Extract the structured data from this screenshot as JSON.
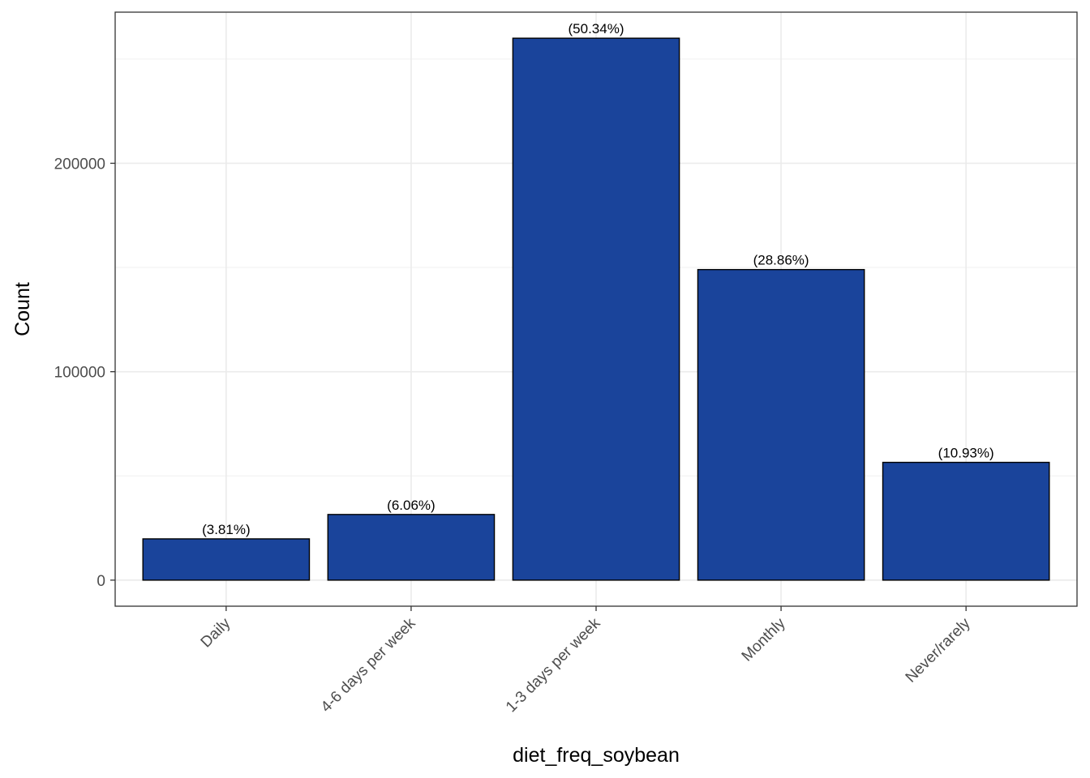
{
  "chart_data": {
    "type": "bar",
    "title": "",
    "xlabel": "diet_freq_soybean",
    "ylabel": "Count",
    "categories": [
      "Daily",
      "4-6 days per week",
      "1-3 days per week",
      "Monthly",
      "Never/rarely"
    ],
    "values": [
      19800,
      31500,
      260000,
      149000,
      56500
    ],
    "data_labels": [
      "(3.81%)",
      "(6.06%)",
      "(50.34%)",
      "(28.86%)",
      "(10.93%)"
    ],
    "ylim": [
      -12500,
      272500
    ],
    "yticks": [
      0,
      100000,
      200000
    ],
    "ytick_labels": [
      "0",
      "100000",
      "200000"
    ],
    "y_minor_ticks": [
      50000,
      150000,
      250000
    ],
    "grid": true,
    "legend": "none",
    "bar_color": "#1a449b",
    "bar_edge_color": "#000000"
  }
}
